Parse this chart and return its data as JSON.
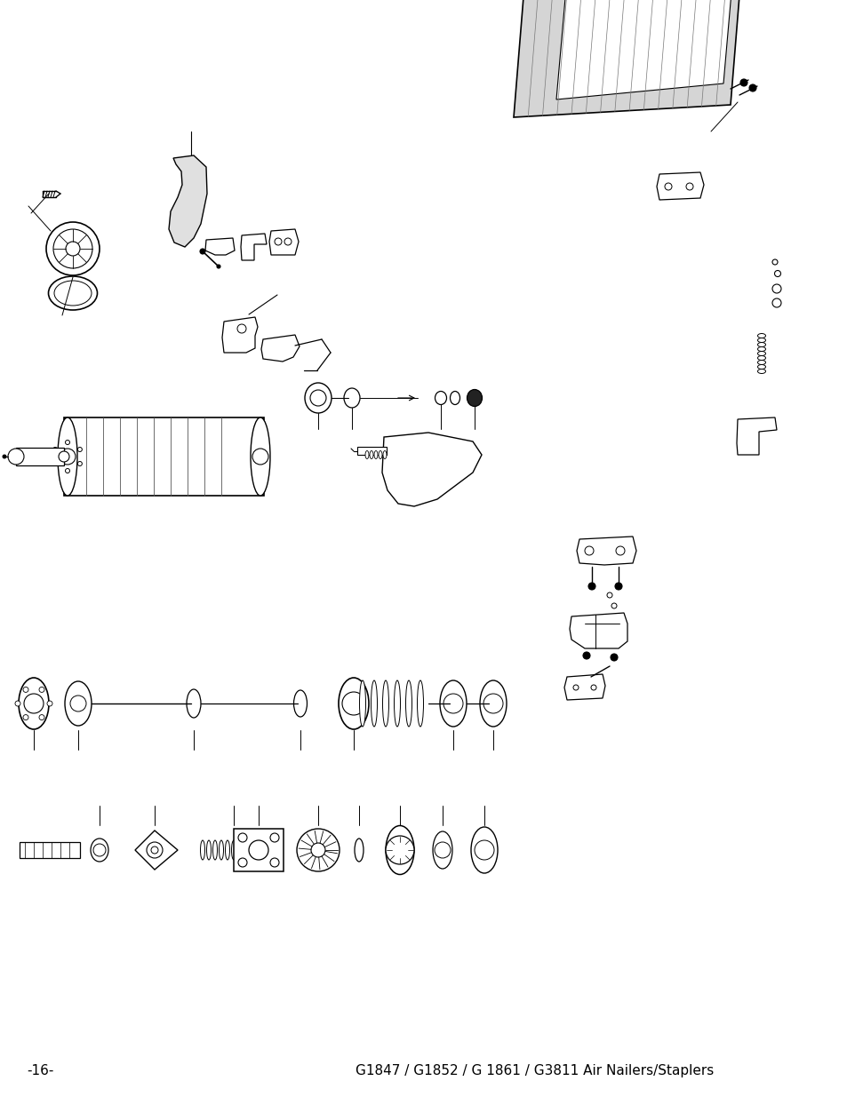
{
  "background_color": "#ffffff",
  "line_color": "#000000",
  "footer_left": "-16-",
  "footer_right": "G1847 / G1852 / G 1861 / G3811 Air Nailers/Staplers",
  "footer_fontsize": 11,
  "fig_width": 9.54,
  "fig_height": 12.35,
  "dpi": 100
}
